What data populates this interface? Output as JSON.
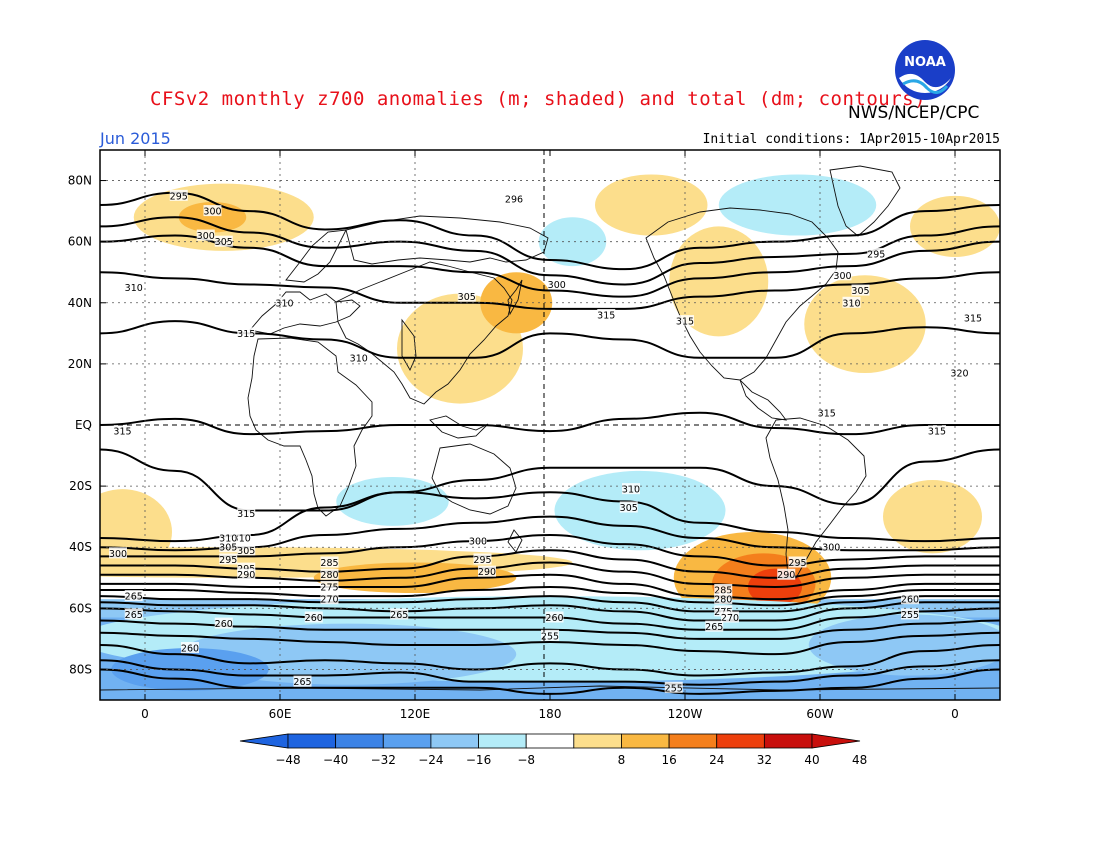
{
  "header": {
    "title": "CFSv2 monthly z700 anomalies (m; shaded) and total (dm; contours)",
    "agency": "NWS/NCEP/CPC",
    "month": "Jun 2015",
    "initial_conditions": "Initial conditions: 1Apr2015-10Apr2015",
    "logo_text": "NOAA"
  },
  "axes": {
    "lat_labels": [
      "80N",
      "60N",
      "40N",
      "20N",
      "EQ",
      "20S",
      "40S",
      "60S",
      "80S"
    ],
    "lat_values": [
      80,
      60,
      40,
      20,
      0,
      -20,
      -40,
      -60,
      -80
    ],
    "lon_labels": [
      "0",
      "60E",
      "120E",
      "180",
      "120W",
      "60W",
      "0"
    ],
    "lon_values": [
      0,
      60,
      120,
      180,
      240,
      300,
      360
    ],
    "lon_range": [
      -20,
      380
    ],
    "lat_range": [
      -90,
      90
    ]
  },
  "colorbar": {
    "labels": [
      "-48",
      "-40",
      "-32",
      "-24",
      "-16",
      "-8",
      "8",
      "16",
      "24",
      "32",
      "40",
      "48"
    ],
    "colors": [
      "#1e64e0",
      "#3c83e6",
      "#5aa0ef",
      "#8ec8f5",
      "#b4ecf8",
      "#ffffff",
      "#fcde8c",
      "#f9b842",
      "#f47f1c",
      "#ed3f0c",
      "#c80f0c"
    ]
  },
  "anomaly_patches": [
    {
      "lon": 35,
      "lat": 68,
      "rx": 40,
      "ry": 11,
      "level": "+16"
    },
    {
      "lon": 30,
      "lat": 68,
      "rx": 15,
      "ry": 5,
      "level": "+24"
    },
    {
      "lon": 140,
      "lat": 25,
      "rx": 28,
      "ry": 18,
      "level": "+16"
    },
    {
      "lon": 165,
      "lat": 40,
      "rx": 16,
      "ry": 10,
      "level": "+24"
    },
    {
      "lon": 255,
      "lat": 47,
      "rx": 22,
      "ry": 18,
      "level": "+16"
    },
    {
      "lon": 225,
      "lat": 72,
      "rx": 25,
      "ry": 10,
      "level": "+16"
    },
    {
      "lon": 320,
      "lat": 33,
      "rx": 27,
      "ry": 16,
      "level": "+16"
    },
    {
      "lon": 360,
      "lat": 65,
      "rx": 20,
      "ry": 10,
      "level": "+16"
    },
    {
      "lon": -10,
      "lat": -35,
      "rx": 22,
      "ry": 14,
      "level": "+16"
    },
    {
      "lon": 350,
      "lat": -30,
      "rx": 22,
      "ry": 12,
      "level": "+16"
    },
    {
      "lon": 40,
      "lat": -45,
      "rx": 150,
      "ry": 5,
      "level": "+16"
    },
    {
      "lon": 120,
      "lat": -50,
      "rx": 45,
      "ry": 5,
      "level": "+24"
    },
    {
      "lon": 270,
      "lat": -50,
      "rx": 35,
      "ry": 15,
      "level": "+24"
    },
    {
      "lon": 275,
      "lat": -52,
      "rx": 23,
      "ry": 10,
      "level": "+32"
    },
    {
      "lon": 280,
      "lat": -53,
      "rx": 12,
      "ry": 6,
      "level": "+40"
    },
    {
      "lon": 290,
      "lat": 72,
      "rx": 35,
      "ry": 10,
      "level": "-8"
    },
    {
      "lon": 190,
      "lat": 60,
      "rx": 15,
      "ry": 8,
      "level": "-8"
    },
    {
      "lon": 220,
      "lat": -28,
      "rx": 38,
      "ry": 13,
      "level": "-8"
    },
    {
      "lon": 230,
      "lat": -30,
      "rx": 15,
      "ry": 7,
      "level": "-16"
    },
    {
      "lon": 110,
      "lat": -25,
      "rx": 25,
      "ry": 8,
      "level": "-8"
    },
    {
      "lon": 180,
      "lat": -70,
      "rx": 210,
      "ry": 14,
      "level": "-16"
    },
    {
      "lon": 90,
      "lat": -75,
      "rx": 75,
      "ry": 10,
      "level": "-24"
    },
    {
      "lon": 340,
      "lat": -72,
      "rx": 45,
      "ry": 10,
      "level": "-24"
    },
    {
      "lon": 20,
      "lat": -80,
      "rx": 35,
      "ry": 7,
      "level": "-32"
    }
  ],
  "contours": [
    {
      "label": "295",
      "lats": [
        72,
        76,
        70,
        64,
        67,
        62,
        54,
        51,
        58,
        60,
        62,
        70,
        72
      ],
      "label_at": [
        15,
        75
      ]
    },
    {
      "label": "300",
      "lats": [
        65,
        68,
        63,
        58,
        60,
        57,
        49,
        46,
        53,
        55,
        56,
        62,
        65
      ],
      "label_at": [
        30,
        70
      ]
    },
    {
      "label": "305",
      "lats": [
        60,
        62,
        58,
        52,
        52,
        50,
        44,
        42,
        48,
        50,
        52,
        57,
        60
      ],
      "label_at": [
        35,
        60
      ]
    },
    {
      "label": "310",
      "lats": [
        50,
        48,
        46,
        45,
        40,
        40,
        38,
        38,
        42,
        44,
        46,
        48,
        50
      ],
      "label_at": [
        -5,
        45
      ]
    },
    {
      "label": "315",
      "lats": [
        30,
        34,
        30,
        28,
        22,
        22,
        30,
        28,
        22,
        22,
        30,
        32,
        30
      ],
      "label_at": [
        45,
        30
      ]
    },
    {
      "label": "315",
      "lats": [
        0,
        2,
        -3,
        -2,
        0,
        0,
        -2,
        2,
        4,
        -1,
        -3,
        0,
        0
      ],
      "label_at": [
        -10,
        -2
      ]
    },
    {
      "label": "315",
      "lats": [
        -8,
        -15,
        -28,
        -28,
        -22,
        -18,
        -14,
        -14,
        -14,
        -20,
        -26,
        -12,
        -8
      ],
      "label_at": [
        45,
        -29
      ]
    },
    {
      "label": "310",
      "lats": [
        -37,
        -38,
        -36,
        -27,
        -22,
        -24,
        -22,
        -25,
        -32,
        -35,
        -37,
        -38,
        -37
      ],
      "label_at": [
        43,
        -37
      ]
    },
    {
      "label": "305",
      "lats": [
        -40,
        -41,
        -40,
        -36,
        -34,
        -32,
        -30,
        -33,
        -37,
        -40,
        -41,
        -41,
        -40
      ],
      "label_at": [
        45,
        -41
      ]
    },
    {
      "label": "300",
      "lats": [
        -43,
        -43,
        -43,
        -42,
        -40,
        -38,
        -36,
        -39,
        -43,
        -46,
        -44,
        -43,
        -43
      ],
      "label_at": [
        -12,
        -42
      ]
    },
    {
      "label": "295",
      "lats": [
        -46,
        -46,
        -47,
        -48,
        -47,
        -43,
        -41,
        -44,
        -48,
        -50,
        -47,
        -46,
        -46
      ],
      "label_at": [
        45,
        -47
      ]
    },
    {
      "label": "290",
      "lats": [
        -49,
        -49,
        -50,
        -51,
        -50,
        -47,
        -45,
        -48,
        -52,
        -53,
        -50,
        -49,
        -49
      ],
      "label_at": [
        45,
        -49
      ]
    },
    {
      "label": "285",
      "lats": [
        -52,
        -52,
        -53,
        -53,
        -53,
        -50,
        -49,
        -52,
        -56,
        -57,
        -54,
        -52,
        -52
      ],
      "label_at": [
        82,
        -45
      ]
    },
    {
      "label": "280",
      "lats": [
        -54,
        -54,
        -55,
        -56,
        -56,
        -54,
        -53,
        -55,
        -58,
        -59,
        -56,
        -54,
        -54
      ],
      "label_at": [
        82,
        -49
      ]
    },
    {
      "label": "275",
      "lats": [
        -56,
        -57,
        -57,
        -58,
        -58,
        -57,
        -56,
        -58,
        -61,
        -61,
        -58,
        -56,
        -56
      ],
      "label_at": [
        82,
        -53
      ]
    },
    {
      "label": "270",
      "lats": [
        -58,
        -59,
        -59,
        -60,
        -61,
        -60,
        -59,
        -61,
        -64,
        -64,
        -60,
        -58,
        -58
      ],
      "label_at": [
        82,
        -57
      ]
    },
    {
      "label": "265",
      "lats": [
        -60,
        -61,
        -62,
        -63,
        -63,
        -63,
        -63,
        -65,
        -67,
        -67,
        -63,
        -61,
        -60
      ],
      "label_at": [
        -5,
        -62
      ]
    },
    {
      "label": "260",
      "lats": [
        -64,
        -65,
        -66,
        -67,
        -67,
        -67,
        -67,
        -68,
        -70,
        -70,
        -67,
        -65,
        -64
      ],
      "label_at": [
        75,
        -63
      ]
    },
    {
      "label": "255",
      "lats": [
        -68,
        -69,
        -70,
        -71,
        -72,
        -72,
        -71,
        -72,
        -74,
        -75,
        -71,
        -69,
        -68
      ],
      "label_at": [
        180,
        -69
      ]
    },
    {
      "label": "260",
      "lats": [
        -72,
        -75,
        -78,
        -77,
        -78,
        -80,
        -78,
        -80,
        -82,
        -81,
        -79,
        -74,
        -72
      ],
      "label_at": [
        20,
        -73
      ]
    },
    {
      "label": "265",
      "lats": [
        -77,
        -80,
        -82,
        -82,
        -81,
        -84,
        -84,
        -84,
        -85,
        -84,
        -82,
        -79,
        -77
      ],
      "label_at": [
        70,
        -84
      ]
    },
    {
      "label": "255",
      "lats": [
        -80,
        -83,
        -86,
        -86,
        -86,
        -86,
        -88,
        -86,
        -88,
        -87,
        -86,
        -83,
        -80
      ],
      "label_at": [
        235,
        -86
      ]
    }
  ],
  "extra_labels": [
    {
      "text": "310",
      "lon": 62,
      "lat": 40
    },
    {
      "text": "310",
      "lon": 95,
      "lat": 22
    },
    {
      "text": "305",
      "lon": 143,
      "lat": 42
    },
    {
      "text": "300",
      "lon": 183,
      "lat": 46
    },
    {
      "text": "315",
      "lon": 205,
      "lat": 36
    },
    {
      "text": "315",
      "lon": 240,
      "lat": 34
    },
    {
      "text": "296",
      "lon": 164,
      "lat": 74
    },
    {
      "text": "295",
      "lon": 325,
      "lat": 56
    },
    {
      "text": "300",
      "lon": 310,
      "lat": 49
    },
    {
      "text": "305",
      "lon": 318,
      "lat": 44
    },
    {
      "text": "310",
      "lon": 314,
      "lat": 40
    },
    {
      "text": "315",
      "lon": 368,
      "lat": 35
    },
    {
      "text": "320",
      "lon": 362,
      "lat": 17
    },
    {
      "text": "315",
      "lon": 303,
      "lat": 4
    },
    {
      "text": "315",
      "lon": 352,
      "lat": -2
    },
    {
      "text": "310",
      "lon": 216,
      "lat": -21
    },
    {
      "text": "305",
      "lon": 215,
      "lat": -27
    },
    {
      "text": "300",
      "lon": 148,
      "lat": -38
    },
    {
      "text": "295",
      "lon": 150,
      "lat": -44
    },
    {
      "text": "290",
      "lon": 152,
      "lat": -48
    },
    {
      "text": "300",
      "lon": 305,
      "lat": -40
    },
    {
      "text": "295",
      "lon": 290,
      "lat": -45
    },
    {
      "text": "290",
      "lon": 285,
      "lat": -49
    },
    {
      "text": "285",
      "lon": 257,
      "lat": -54
    },
    {
      "text": "280",
      "lon": 257,
      "lat": -57
    },
    {
      "text": "275",
      "lon": 257,
      "lat": -61
    },
    {
      "text": "270",
      "lon": 260,
      "lat": -63
    },
    {
      "text": "265",
      "lon": 253,
      "lat": -66
    },
    {
      "text": "260",
      "lon": 340,
      "lat": -57
    },
    {
      "text": "255",
      "lon": 340,
      "lat": -62
    },
    {
      "text": "265",
      "lon": -5,
      "lat": -56
    },
    {
      "text": "260",
      "lon": 35,
      "lat": -65
    },
    {
      "text": "265",
      "lon": 113,
      "lat": -62
    },
    {
      "text": "260",
      "lon": 182,
      "lat": -63
    },
    {
      "text": "295",
      "lon": 37,
      "lat": -44
    },
    {
      "text": "305",
      "lon": 37,
      "lat": -40
    },
    {
      "text": "310",
      "lon": 37,
      "lat": -37
    },
    {
      "text": "300",
      "lon": 27,
      "lat": 62
    }
  ]
}
